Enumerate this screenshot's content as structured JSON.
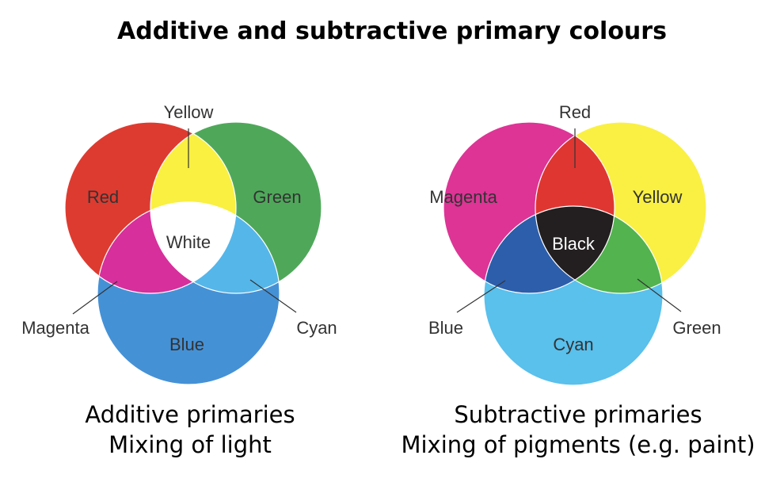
{
  "title": "Additive and subtractive primary colours",
  "additive": {
    "labels": {
      "red": "Red",
      "green": "Green",
      "blue": "Blue",
      "yellow": "Yellow",
      "magenta": "Magenta",
      "cyan": "Cyan",
      "white": "White"
    },
    "colors": {
      "red": "#de3b30",
      "green": "#4fa85a",
      "blue": "#4591d6",
      "yellow": "#f9f041",
      "magenta": "#d72f9c",
      "cyan": "#55b6ea",
      "white": "#ffffff"
    },
    "caption_line1": "Additive primaries",
    "caption_line2": "Mixing of light"
  },
  "subtractive": {
    "labels": {
      "magenta": "Magenta",
      "yellow": "Yellow",
      "cyan": "Cyan",
      "red": "Red",
      "blue": "Blue",
      "green": "Green",
      "black": "Black"
    },
    "colors": {
      "magenta": "#dd3496",
      "yellow": "#f9f043",
      "cyan": "#5ac0ec",
      "red": "#df3632",
      "blue": "#2c5eab",
      "green": "#52b34f",
      "black": "#231f20"
    },
    "caption_line1": "Subtractive primaries",
    "caption_line2": "Mixing of pigments (e.g. paint)"
  }
}
